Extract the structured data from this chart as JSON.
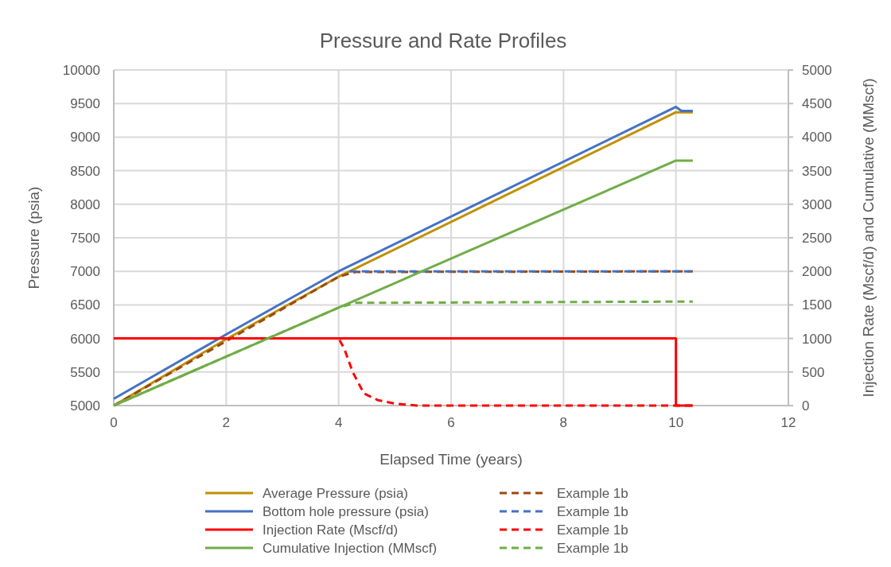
{
  "chart_data": {
    "type": "line",
    "title": "Pressure and Rate Profiles",
    "xlabel": "Elapsed Time (years)",
    "ylabel": "Pressure (psia)",
    "y2label": "Injection Rate (Mscf/d) and Cumulative (MMscf)",
    "xlim": [
      0,
      12
    ],
    "xticks": [
      0,
      2,
      4,
      6,
      8,
      10,
      12
    ],
    "ylim": [
      5000,
      10000
    ],
    "yticks": [
      5000,
      5500,
      6000,
      6500,
      7000,
      7500,
      8000,
      8500,
      9000,
      9500,
      10000
    ],
    "y2lim": [
      0,
      5000
    ],
    "y2ticks": [
      0,
      500,
      1000,
      1500,
      2000,
      2500,
      3000,
      3500,
      4000,
      4500,
      5000
    ],
    "grid": true,
    "legend": "bottom",
    "marker": "none",
    "series": [
      {
        "name": "Average Pressure (psia)",
        "color": "#c09000",
        "line_style": "solid",
        "x": [
          0,
          2,
          4,
          10,
          10.3
        ],
        "values": [
          5000,
          5990,
          6920,
          9370,
          9370
        ]
      },
      {
        "name": "Example 1b",
        "color": "#9e480e",
        "line_style": "dashed",
        "x": [
          0,
          4,
          4.3,
          10.3
        ],
        "values": [
          5000,
          6920,
          6990,
          7000
        ]
      },
      {
        "name": "Bottom hole pressure (psia)",
        "color": "#4472c4",
        "line_style": "solid",
        "x": [
          0,
          2,
          4,
          10,
          10.1,
          10.3
        ],
        "values": [
          5100,
          6060,
          7000,
          9450,
          9390,
          9390
        ]
      },
      {
        "name": "Example 1b",
        "color": "#4472c4",
        "line_style": "dashed",
        "x": [
          4.2,
          10.3
        ],
        "values": [
          7000,
          7000
        ]
      },
      {
        "name": "Injection Rate (Mscf/d)",
        "color": "#ff0000",
        "line_style": "solid",
        "axis": "y2",
        "x": [
          0,
          10,
          10,
          10.3
        ],
        "values": [
          1000,
          1000,
          0,
          0
        ]
      },
      {
        "name": "Example 1b",
        "color": "#ff0000",
        "line_style": "dashed",
        "axis": "y2",
        "x": [
          0,
          4,
          4.1,
          4.25,
          4.45,
          4.7,
          5,
          5.4,
          10.3
        ],
        "values": [
          1000,
          1000,
          850,
          500,
          180,
          80,
          30,
          0,
          0
        ]
      },
      {
        "name": "Cumulative Injection (MMscf)",
        "color": "#70ad47",
        "line_style": "solid",
        "axis": "y2",
        "x": [
          0,
          10,
          10.3
        ],
        "values": [
          0,
          3650,
          3650
        ]
      },
      {
        "name": "Example 1b",
        "color": "#70ad47",
        "line_style": "dashed",
        "axis": "y2",
        "x": [
          0,
          4,
          4.3,
          10.3
        ],
        "values": [
          0,
          1460,
          1530,
          1550
        ]
      }
    ]
  }
}
